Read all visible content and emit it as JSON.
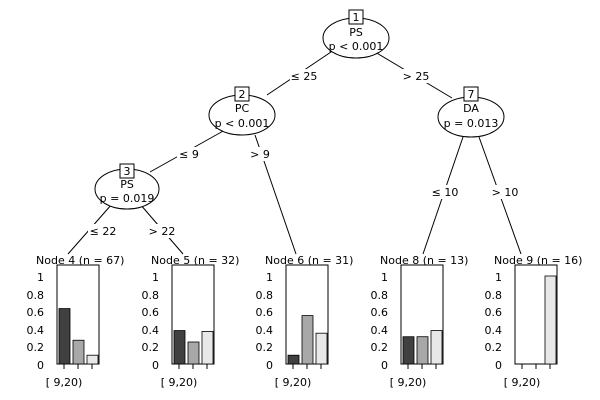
{
  "inner_nodes": [
    {
      "id": "1",
      "var": "PS",
      "p": "p < 0.001"
    },
    {
      "id": "2",
      "var": "PC",
      "p": "p < 0.001"
    },
    {
      "id": "7",
      "var": "DA",
      "p": "p = 0.013"
    },
    {
      "id": "3",
      "var": "PS",
      "p": "p = 0.019"
    }
  ],
  "edges": [
    {
      "label": "≤ 25"
    },
    {
      "label": "> 25"
    },
    {
      "label": "≤ 9"
    },
    {
      "label": "> 9"
    },
    {
      "label": "≤ 10"
    },
    {
      "label": "> 10"
    },
    {
      "label": "≤ 22"
    },
    {
      "label": "> 22"
    }
  ],
  "terminal_nodes": [
    {
      "title": "Node 4 (n = 67)",
      "values": [
        0.63,
        0.27,
        0.1
      ],
      "category_label": "[ 9,20)"
    },
    {
      "title": "Node 5 (n = 32)",
      "values": [
        0.38,
        0.25,
        0.37
      ],
      "category_label": "[ 9,20)"
    },
    {
      "title": "Node 6 (n = 31)",
      "values": [
        0.1,
        0.55,
        0.35
      ],
      "category_label": "[ 9,20)"
    },
    {
      "title": "Node 8 (n = 13)",
      "values": [
        0.31,
        0.31,
        0.38
      ],
      "category_label": "[ 9,20)"
    },
    {
      "title": "Node 9 (n = 16)",
      "values": [
        0.0,
        0.0,
        1.0
      ],
      "category_label": "[ 9,20)"
    }
  ],
  "y_ticks": [
    "1",
    "0.8",
    "0.6",
    "0.4",
    "0.2",
    "0"
  ],
  "y_tick_values": [
    1,
    0.8,
    0.6,
    0.4,
    0.2,
    0
  ],
  "bar_colors": [
    "#404040",
    "#a8a8a8",
    "#e8e8e8"
  ]
}
